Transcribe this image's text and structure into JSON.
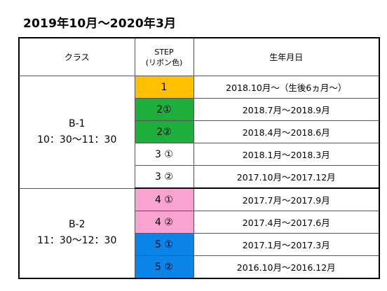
{
  "title": "2019年10月～2020年3月",
  "header": {
    "class_label": "クラス",
    "step_label_top": "STEP",
    "step_label_sub": "(リボン色)",
    "birth_label": "生年月日"
  },
  "groups": [
    {
      "class_name": "B-1",
      "class_time": "10：30～11：30",
      "rows": [
        {
          "step": "1",
          "color": "#FFC000",
          "birth": "2018.10月～（生後6ヵ月～）"
        },
        {
          "step": "2①",
          "color": "#1EAE3C",
          "birth": "2018.7月～2018.9月"
        },
        {
          "step": "2②",
          "color": "#1EAE3C",
          "birth": "2018.4月～2018.6月"
        },
        {
          "step": "3 ①",
          "color": "#FFFFFF",
          "birth": "2018.1月～2018.3月"
        },
        {
          "step": "3 ②",
          "color": "#FFFFFF",
          "birth": "2017.10月～2017.12月"
        }
      ]
    },
    {
      "class_name": "B-2",
      "class_time": "11：30～12：30",
      "rows": [
        {
          "step": "4 ①",
          "color": "#F9A3D0",
          "birth": "2017.7月～2017.9月"
        },
        {
          "step": "4 ②",
          "color": "#F9A3D0",
          "birth": "2017.4月～2017.6月"
        },
        {
          "step": "5 ①",
          "color": "#0B84E8",
          "birth": "2017.1月～2017.3月"
        },
        {
          "step": "5 ②",
          "color": "#0B84E8",
          "birth": "2016.10月～2016.12月"
        }
      ]
    }
  ]
}
